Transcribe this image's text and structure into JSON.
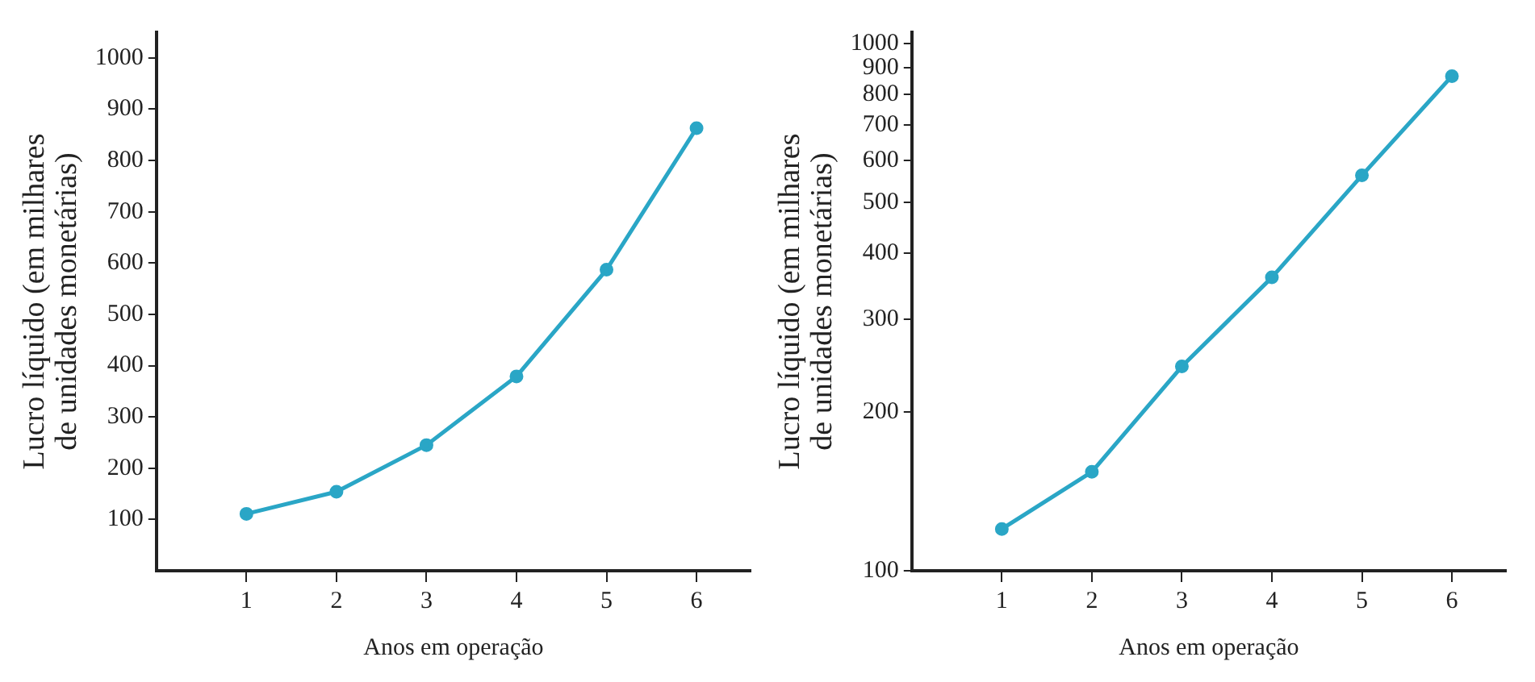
{
  "chart_data": [
    {
      "type": "line",
      "xlabel": "Anos em operação",
      "ylabel": "Lucro líquido (em milhares de unidades monetárias)",
      "x": [
        1,
        2,
        3,
        4,
        5,
        6
      ],
      "xlim": [
        0,
        6.6
      ],
      "xticks": [
        1,
        2,
        3,
        4,
        5,
        6
      ],
      "ylim": [
        0,
        1050
      ],
      "yticks": [
        100,
        200,
        300,
        400,
        500,
        600,
        700,
        800,
        900,
        1000
      ],
      "grid": false,
      "legend": false,
      "marker": "circle",
      "line_style": "solid",
      "series": [
        {
          "color": "#2aa6c6",
          "values": [
            111,
            154,
            245,
            379,
            587,
            863
          ]
        }
      ]
    },
    {
      "type": "line",
      "xlabel": "Anos em operação",
      "ylabel": "Lucro líquido (em milhares de unidades monetárias)",
      "x": [
        1,
        2,
        3,
        4,
        5,
        6
      ],
      "xlim": [
        0,
        6.6
      ],
      "xticks": [
        1,
        2,
        3,
        4,
        5,
        6
      ],
      "ylim": [
        100,
        1050
      ],
      "yticks": [
        100,
        200,
        300,
        400,
        500,
        600,
        700,
        800,
        900,
        1000
      ],
      "log": "y",
      "grid": false,
      "legend": false,
      "marker": "circle",
      "line_style": "solid",
      "series": [
        {
          "color": "#2aa6c6",
          "values": [
            120,
            154,
            244,
            360,
            562,
            867
          ]
        }
      ]
    }
  ]
}
